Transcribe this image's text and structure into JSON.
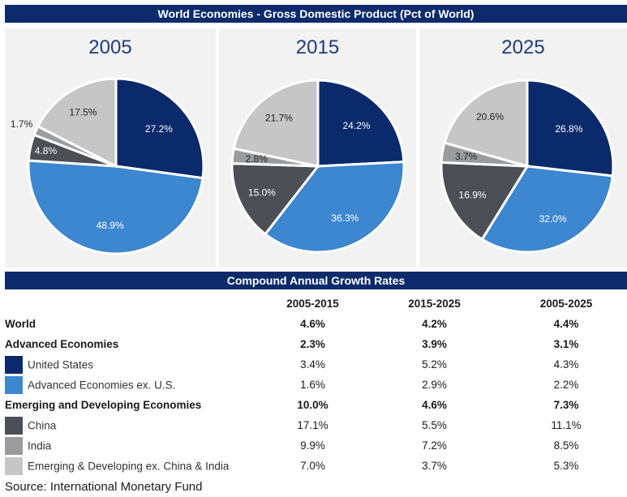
{
  "title": "World Economies - Gross Domestic Product (Pct of World)",
  "colors": {
    "banner": "#0d2b6b",
    "us": "#0b2a6b",
    "adv_ex_us": "#3d86d0",
    "china": "#4d4f56",
    "india": "#9b9ca0",
    "em_ex": "#c6c6c6"
  },
  "chart_data": [
    {
      "type": "pie",
      "title": "2005",
      "slices": [
        {
          "label": "United States",
          "value": 27.2,
          "text": "27.2%",
          "color": "#0b2a6b"
        },
        {
          "label": "Advanced Economies ex. U.S.",
          "value": 48.9,
          "text": "48.9%",
          "color": "#3d86d0"
        },
        {
          "label": "China",
          "value": 4.8,
          "text": "4.8%",
          "color": "#4d4f56"
        },
        {
          "label": "India",
          "value": 1.7,
          "text": "1.7%",
          "color": "#9b9ca0"
        },
        {
          "label": "Emerging & Developing ex. China & India",
          "value": 17.5,
          "text": "17.5%",
          "color": "#c6c6c6"
        }
      ]
    },
    {
      "type": "pie",
      "title": "2015",
      "slices": [
        {
          "label": "United States",
          "value": 24.2,
          "text": "24.2%",
          "color": "#0b2a6b"
        },
        {
          "label": "Advanced Economies ex. U.S.",
          "value": 36.3,
          "text": "36.3%",
          "color": "#3d86d0"
        },
        {
          "label": "China",
          "value": 15.0,
          "text": "15.0%",
          "color": "#4d4f56"
        },
        {
          "label": "India",
          "value": 2.8,
          "text": "2.8%",
          "color": "#9b9ca0"
        },
        {
          "label": "Emerging & Developing ex. China & India",
          "value": 21.7,
          "text": "21.7%",
          "color": "#c6c6c6"
        }
      ]
    },
    {
      "type": "pie",
      "title": "2025",
      "slices": [
        {
          "label": "United States",
          "value": 26.8,
          "text": "26.8%",
          "color": "#0b2a6b"
        },
        {
          "label": "Advanced Economies ex. U.S.",
          "value": 32.0,
          "text": "32.0%",
          "color": "#3d86d0"
        },
        {
          "label": "China",
          "value": 16.9,
          "text": "16.9%",
          "color": "#4d4f56"
        },
        {
          "label": "India",
          "value": 3.7,
          "text": "3.7%",
          "color": "#9b9ca0"
        },
        {
          "label": "Emerging & Developing ex. China & India",
          "value": 20.6,
          "text": "20.6%",
          "color": "#c6c6c6"
        }
      ]
    }
  ],
  "growth": {
    "title": "Compound Annual Growth Rates",
    "columns": [
      "2005-2015",
      "2015-2025",
      "2005-2025"
    ],
    "rows": [
      {
        "label": "World",
        "values": [
          "4.6%",
          "4.2%",
          "4.4%"
        ]
      },
      {
        "label": "Advanced Economies",
        "values": [
          "2.3%",
          "3.9%",
          "3.1%"
        ]
      },
      {
        "label": "United States",
        "values": [
          "3.4%",
          "5.2%",
          "4.3%"
        ],
        "color": "#0b2a6b"
      },
      {
        "label": "Advanced Economies ex. U.S.",
        "values": [
          "1.6%",
          "2.9%",
          "2.2%"
        ],
        "color": "#3d86d0"
      },
      {
        "label": "Emerging and Developing Economies",
        "values": [
          "10.0%",
          "4.6%",
          "7.3%"
        ]
      },
      {
        "label": "China",
        "values": [
          "17.1%",
          "5.5%",
          "11.1%"
        ],
        "color": "#4d4f56"
      },
      {
        "label": "India",
        "values": [
          "9.9%",
          "7.2%",
          "8.5%"
        ],
        "color": "#9b9ca0"
      },
      {
        "label": "Emerging & Developing ex. China & India",
        "values": [
          "7.0%",
          "3.7%",
          "5.3%"
        ],
        "color": "#c6c6c6"
      }
    ]
  },
  "source": "Source: International Monetary Fund"
}
